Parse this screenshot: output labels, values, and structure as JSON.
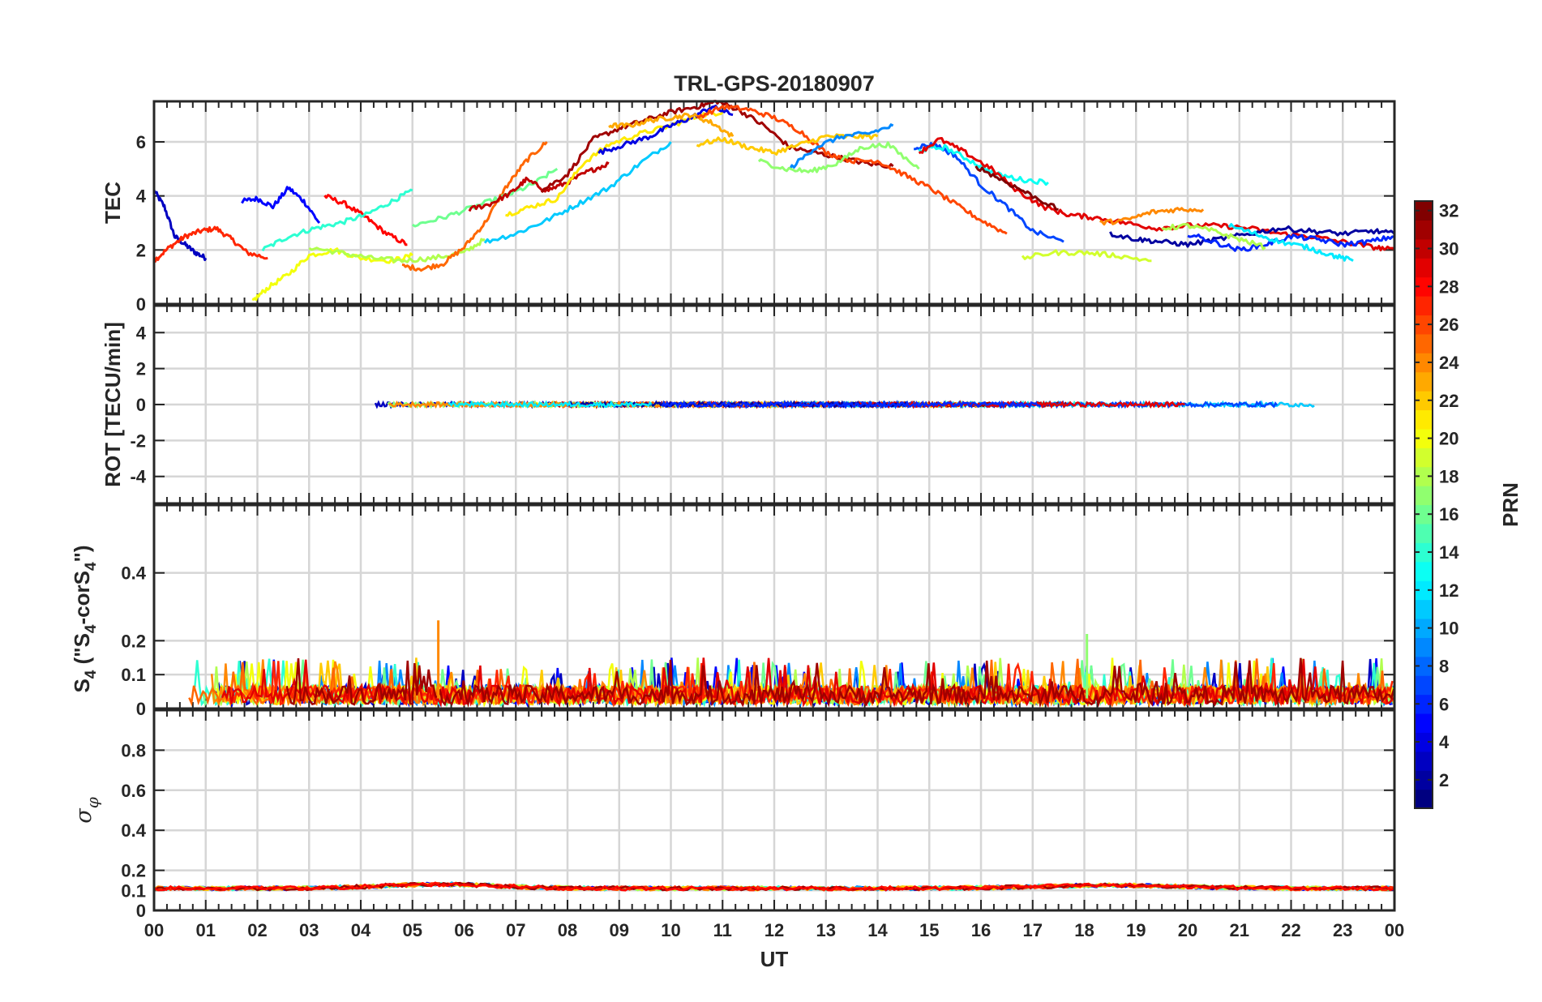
{
  "chart_data": [
    {
      "type": "line",
      "panel": "tec",
      "title": "TRL-GPS-20180907",
      "xlabel": "",
      "ylabel": "TEC",
      "xlim": [
        0,
        24
      ],
      "ylim": [
        0,
        7.5
      ],
      "yticks": [
        0,
        2,
        4,
        6
      ],
      "ytick_labels": [
        "0",
        "2",
        "4",
        "6"
      ],
      "grid": true,
      "series": [
        {
          "name": "PRN 3",
          "prn": 3,
          "x": [
            0.0,
            0.2,
            0.4,
            0.6,
            0.8,
            1.0
          ],
          "y": [
            4.2,
            3.6,
            2.5,
            2.2,
            1.9,
            1.7
          ]
        },
        {
          "name": "PRN 27",
          "prn": 27,
          "x": [
            0.0,
            0.3,
            0.6,
            0.9,
            1.2,
            1.5,
            1.8,
            2.2
          ],
          "y": [
            1.6,
            2.1,
            2.5,
            2.7,
            2.8,
            2.4,
            1.9,
            1.7
          ]
        },
        {
          "name": "PRN 5",
          "prn": 5,
          "x": [
            1.7,
            2.0,
            2.3,
            2.6,
            2.9,
            3.2
          ],
          "y": [
            3.8,
            3.9,
            3.6,
            4.3,
            3.8,
            3.0
          ]
        },
        {
          "name": "PRN 28",
          "prn": 28,
          "x": [
            3.3,
            3.7,
            4.1,
            4.5,
            4.9
          ],
          "y": [
            4.0,
            3.7,
            3.2,
            2.6,
            2.2
          ]
        },
        {
          "name": "PRN 14",
          "prn": 14,
          "x": [
            2.1,
            2.6,
            3.1,
            3.6,
            4.1,
            4.6,
            5.0
          ],
          "y": [
            2.0,
            2.5,
            2.8,
            3.0,
            3.3,
            3.8,
            4.2
          ]
        },
        {
          "name": "PRN 20",
          "prn": 20,
          "x": [
            1.9,
            2.2,
            2.6,
            3.0,
            3.5,
            4.0,
            4.6,
            5.0
          ],
          "y": [
            0.1,
            0.6,
            1.1,
            1.8,
            2.0,
            1.7,
            1.6,
            1.8
          ]
        },
        {
          "name": "PRN 18",
          "prn": 18,
          "x": [
            3.0,
            3.6,
            4.2,
            4.8,
            5.4,
            6.0,
            6.4
          ],
          "y": [
            2.1,
            1.9,
            1.7,
            1.6,
            1.7,
            1.9,
            2.4
          ]
        },
        {
          "name": "PRN 25",
          "prn": 25,
          "x": [
            4.8,
            5.2,
            5.6,
            6.0,
            6.4,
            6.8,
            7.2,
            7.6
          ],
          "y": [
            1.4,
            1.3,
            1.5,
            2.1,
            3.0,
            4.3,
            5.3,
            6.0
          ]
        },
        {
          "name": "PRN 16",
          "prn": 16,
          "x": [
            5.0,
            5.6,
            6.2,
            6.8,
            7.3,
            7.8
          ],
          "y": [
            2.9,
            3.2,
            3.6,
            4.0,
            4.4,
            5.0
          ]
        },
        {
          "name": "PRN 30",
          "prn": 30,
          "x": [
            6.1,
            6.5,
            6.9,
            7.2,
            7.6,
            8.0,
            8.4,
            8.8
          ],
          "y": [
            3.5,
            3.7,
            4.1,
            4.6,
            4.2,
            4.5,
            4.9,
            5.2
          ]
        },
        {
          "name": "PRN 11",
          "prn": 11,
          "x": [
            6.4,
            7.0,
            7.6,
            8.2,
            8.8,
            9.4,
            10.0
          ],
          "y": [
            2.3,
            2.6,
            3.1,
            3.7,
            4.3,
            5.2,
            6.0
          ]
        },
        {
          "name": "PRN 21",
          "prn": 21,
          "x": [
            6.8,
            7.3,
            7.8,
            8.3,
            8.8,
            9.4,
            10.0,
            10.6,
            11.0
          ],
          "y": [
            3.3,
            3.6,
            3.9,
            5.2,
            5.9,
            6.3,
            6.6,
            7.0,
            7.1
          ]
        },
        {
          "name": "PRN 31",
          "prn": 31,
          "x": [
            7.5,
            8.0,
            8.5,
            9.0,
            9.5,
            10.0,
            10.5,
            10.9,
            11.3,
            11.8,
            12.3,
            12.8,
            13.3,
            13.8,
            14.3
          ],
          "y": [
            4.2,
            4.8,
            6.1,
            6.5,
            6.8,
            7.1,
            7.3,
            7.5,
            7.2,
            6.6,
            5.8,
            5.6,
            5.4,
            5.2,
            5.1
          ]
        },
        {
          "name": "PRN 4",
          "prn": 4,
          "x": [
            8.6,
            9.1,
            9.6,
            10.0,
            10.4,
            10.8,
            11.2
          ],
          "y": [
            5.6,
            5.9,
            6.2,
            6.6,
            6.9,
            7.3,
            7.0
          ]
        },
        {
          "name": "PRN 23",
          "prn": 23,
          "x": [
            8.8,
            9.2,
            9.6,
            10.0,
            10.4,
            10.8,
            11.2
          ],
          "y": [
            6.6,
            6.6,
            6.8,
            6.9,
            7.0,
            6.7,
            6.2
          ]
        },
        {
          "name": "PRN 26",
          "prn": 26,
          "x": [
            10.5,
            11.0,
            11.5,
            12.0,
            12.5,
            13.0,
            13.5,
            14.0,
            14.5,
            15.0,
            15.5,
            16.0,
            16.5
          ],
          "y": [
            6.9,
            7.3,
            7.2,
            6.9,
            6.4,
            5.6,
            5.3,
            5.3,
            4.8,
            4.3,
            3.7,
            3.1,
            2.6
          ]
        },
        {
          "name": "PRN 22",
          "prn": 22,
          "x": [
            10.5,
            11.0,
            11.5,
            12.0,
            12.5,
            13.0,
            13.5,
            14.0
          ],
          "y": [
            5.9,
            6.1,
            5.8,
            5.6,
            5.9,
            6.2,
            6.2,
            6.2
          ]
        },
        {
          "name": "PRN 9",
          "prn": 9,
          "x": [
            12.3,
            12.8,
            13.3,
            13.8,
            14.3
          ],
          "y": [
            5.0,
            5.8,
            6.2,
            6.3,
            6.6
          ]
        },
        {
          "name": "PRN 17",
          "prn": 17,
          "x": [
            11.7,
            12.2,
            12.7,
            13.2,
            13.7,
            14.2,
            14.8
          ],
          "y": [
            5.3,
            5.0,
            4.9,
            5.2,
            5.8,
            5.9,
            5.0
          ]
        },
        {
          "name": "PRN 7",
          "prn": 7,
          "x": [
            14.7,
            15.1,
            15.5,
            16.0,
            16.5,
            17.0,
            17.6
          ],
          "y": [
            5.8,
            5.9,
            5.5,
            4.4,
            3.6,
            2.7,
            2.3
          ]
        },
        {
          "name": "PRN 13",
          "prn": 13,
          "x": [
            14.8,
            15.3,
            15.8,
            16.3,
            16.8,
            17.3
          ],
          "y": [
            5.7,
            5.8,
            5.3,
            4.8,
            4.6,
            4.5
          ]
        },
        {
          "name": "PRN 29",
          "prn": 29,
          "x": [
            14.8,
            15.2,
            15.7,
            16.2,
            16.7,
            17.2,
            17.7,
            18.2,
            18.8,
            19.4,
            20.0,
            20.6,
            21.2,
            21.8,
            22.4,
            23.0,
            23.6,
            24.0
          ],
          "y": [
            5.6,
            6.1,
            5.6,
            5.0,
            4.2,
            3.6,
            3.3,
            3.2,
            3.0,
            2.8,
            2.9,
            2.9,
            2.8,
            2.6,
            2.5,
            2.3,
            2.1,
            2.0
          ]
        },
        {
          "name": "PRN 32",
          "prn": 32,
          "x": [
            15.9,
            16.4,
            16.9,
            17.5
          ],
          "y": [
            5.1,
            4.6,
            4.1,
            3.5
          ]
        },
        {
          "name": "PRN 19",
          "prn": 19,
          "x": [
            16.8,
            17.4,
            18.0,
            18.6,
            19.3
          ],
          "y": [
            1.7,
            1.9,
            1.9,
            1.8,
            1.6
          ]
        },
        {
          "name": "PRN 24",
          "prn": 24,
          "x": [
            18.3,
            18.8,
            19.3,
            19.8,
            20.3
          ],
          "y": [
            3.0,
            3.1,
            3.4,
            3.5,
            3.5
          ]
        },
        {
          "name": "PRN 2",
          "prn": 2,
          "x": [
            18.5,
            19.0,
            19.5,
            20.0,
            20.6,
            21.2,
            21.8,
            22.4,
            23.0,
            23.6,
            24.0
          ],
          "y": [
            2.6,
            2.4,
            2.3,
            2.2,
            2.4,
            2.6,
            2.8,
            2.7,
            2.6,
            2.7,
            2.6
          ]
        },
        {
          "name": "PRN 6",
          "prn": 6,
          "x": [
            20.0,
            20.5,
            21.0,
            21.5,
            22.0,
            22.5,
            23.0,
            23.5,
            24.0
          ],
          "y": [
            2.6,
            2.3,
            2.0,
            2.2,
            2.5,
            2.4,
            2.2,
            2.3,
            2.5
          ]
        },
        {
          "name": "PRN 12",
          "prn": 12,
          "x": [
            20.8,
            21.3,
            21.8,
            22.3,
            22.8,
            23.2
          ],
          "y": [
            2.9,
            2.6,
            2.3,
            2.1,
            1.8,
            1.6
          ]
        },
        {
          "name": "PRN 18b",
          "prn": 18,
          "x": [
            19.5,
            20.0,
            20.5,
            21.0,
            21.5
          ],
          "y": [
            2.8,
            2.9,
            2.7,
            2.4,
            2.1
          ]
        }
      ]
    },
    {
      "type": "line",
      "panel": "rot",
      "xlabel": "",
      "ylabel": "ROT [TECU/min]",
      "xlim": [
        0,
        24
      ],
      "ylim": [
        -5.5,
        5.5
      ],
      "yticks": [
        -4,
        -2,
        0,
        2,
        4
      ],
      "ytick_labels": [
        "-4",
        "-2",
        "0",
        "2",
        "4"
      ],
      "grid": true,
      "description_values": {
        "mean": 0.0,
        "typical_amplitude": 0.15,
        "max_abs": 0.4
      }
    },
    {
      "type": "line",
      "panel": "s4",
      "xlabel": "",
      "ylabel": "S4 (\"S4-corS4\")",
      "ylabel_parts": {
        "main": "S",
        "sub1": "4",
        "paren_open": " (\"S",
        "sub2": "4",
        "mid": "-corS",
        "sub3": "4",
        "paren_close": "\")"
      },
      "xlim": [
        0,
        24
      ],
      "ylim": [
        0,
        0.6
      ],
      "yticks": [
        0,
        0.1,
        0.2,
        0.4
      ],
      "ytick_labels": [
        "0",
        "0.1",
        "0.2",
        "0.4"
      ],
      "grid": true,
      "description_values": {
        "baseline": 0.04,
        "typical_max": 0.15,
        "peak": {
          "x": 5.5,
          "y": 0.26
        },
        "secondary_peak": {
          "x": 18.05,
          "y": 0.22
        }
      }
    },
    {
      "type": "line",
      "panel": "sigma_phi",
      "xlabel": "UT",
      "ylabel": "σφ",
      "ylabel_parts": {
        "main": "σ",
        "sub": "φ"
      },
      "xlim": [
        0,
        24
      ],
      "ylim": [
        0,
        1.0
      ],
      "yticks": [
        0,
        0.1,
        0.2,
        0.4,
        0.6,
        0.8
      ],
      "ytick_labels": [
        "0",
        "0.1",
        "0.2",
        "0.4",
        "0.6",
        "0.8"
      ],
      "grid": true,
      "description_values": {
        "baseline": 0.11,
        "max": 0.16
      }
    }
  ],
  "x_axis": {
    "label": "UT",
    "ticks": [
      0,
      1,
      2,
      3,
      4,
      5,
      6,
      7,
      8,
      9,
      10,
      11,
      12,
      13,
      14,
      15,
      16,
      17,
      18,
      19,
      20,
      21,
      22,
      23,
      24
    ],
    "tick_labels": [
      "00",
      "01",
      "02",
      "03",
      "04",
      "05",
      "06",
      "07",
      "08",
      "09",
      "10",
      "11",
      "12",
      "13",
      "14",
      "15",
      "16",
      "17",
      "18",
      "19",
      "20",
      "21",
      "22",
      "23",
      "00"
    ]
  },
  "colorbar": {
    "label": "PRN",
    "colormap": "jet",
    "range": [
      1,
      32
    ],
    "ticks": [
      2,
      4,
      6,
      8,
      10,
      12,
      14,
      16,
      18,
      20,
      22,
      24,
      26,
      28,
      30,
      32
    ],
    "tick_labels": [
      "2",
      "4",
      "6",
      "8",
      "10",
      "12",
      "14",
      "16",
      "18",
      "20",
      "22",
      "24",
      "26",
      "28",
      "30",
      "32"
    ]
  }
}
